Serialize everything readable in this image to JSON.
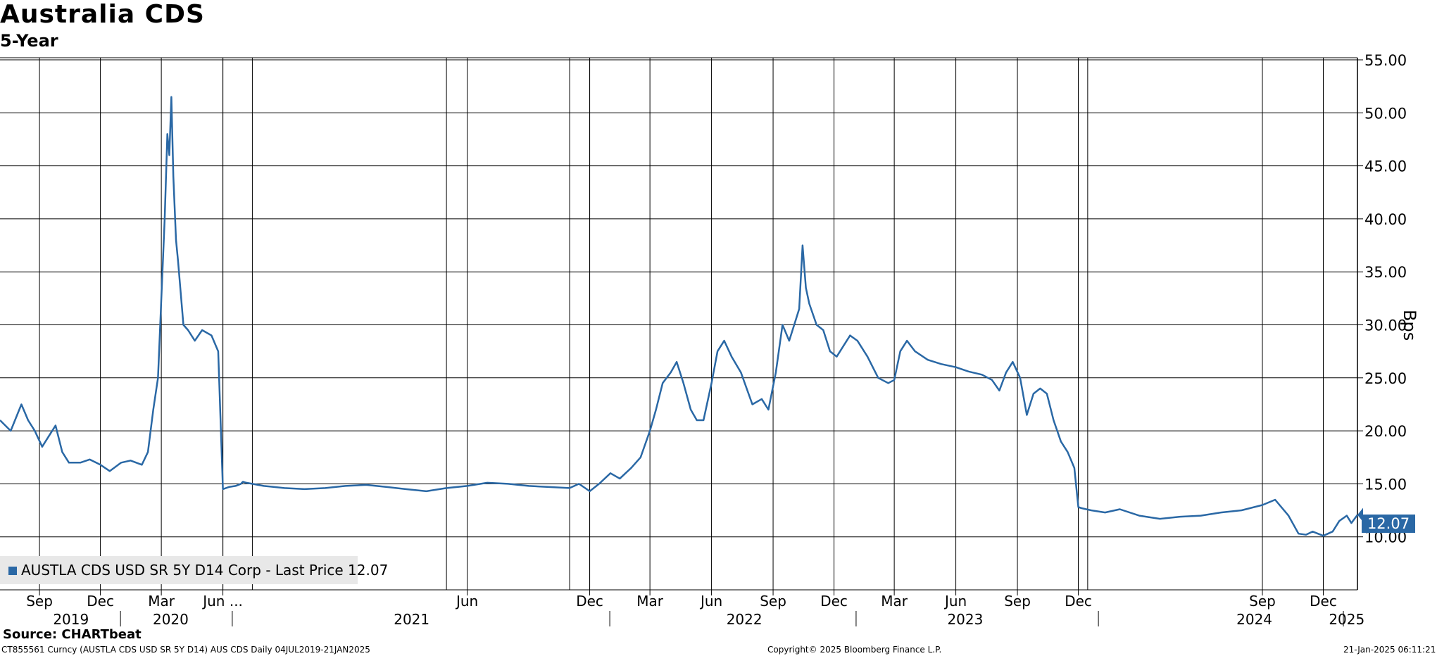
{
  "chart_data": {
    "type": "line",
    "title": "Australia CDS",
    "subtitle": "5-Year",
    "ylabel": "Bps",
    "ylim": [
      5,
      55
    ],
    "yticks": [
      "55.00",
      "50.00",
      "45.00",
      "40.00",
      "35.00",
      "30.00",
      "25.00",
      "20.00",
      "15.00",
      "10.00"
    ],
    "ytick_values": [
      55,
      50,
      45,
      40,
      35,
      30,
      25,
      20,
      15,
      10
    ],
    "xlim": [
      "2019-07-04",
      "2025-01-21"
    ],
    "month_ticks": [
      {
        "label": "Sep",
        "date": "2019-09-01"
      },
      {
        "label": "Dec",
        "date": "2019-12-01"
      },
      {
        "label": "Mar",
        "date": "2020-03-01"
      },
      {
        "label": "Jun ...",
        "date": "2020-06-01"
      },
      {
        "label": "Jun",
        "date": "2021-06-01"
      },
      {
        "label": "Dec",
        "date": "2021-12-01"
      },
      {
        "label": "Mar",
        "date": "2022-03-01"
      },
      {
        "label": "Jun",
        "date": "2022-06-01"
      },
      {
        "label": "Sep",
        "date": "2022-09-01"
      },
      {
        "label": "Dec",
        "date": "2022-12-01"
      },
      {
        "label": "Mar",
        "date": "2023-03-01"
      },
      {
        "label": "Jun",
        "date": "2023-06-01"
      },
      {
        "label": "Sep",
        "date": "2023-09-01"
      },
      {
        "label": "Dec",
        "date": "2023-12-01"
      },
      {
        "label": "Sep",
        "date": "2024-09-01"
      },
      {
        "label": "Dec",
        "date": "2024-12-01"
      }
    ],
    "extra_gridlines": [
      "2020-06-01",
      "2020-07-15",
      "2021-05-01",
      "2021-11-01",
      "2021-12-01",
      "2023-12-01",
      "2023-12-15",
      "2024-12-01"
    ],
    "year_ticks": [
      {
        "label": "2019",
        "date": "2019-10-18"
      },
      {
        "label": "2020",
        "date": "2020-03-15"
      },
      {
        "label": "2021",
        "date": "2021-03-10"
      },
      {
        "label": "2022",
        "date": "2022-07-20"
      },
      {
        "label": "2023",
        "date": "2023-06-15"
      },
      {
        "label": "2024",
        "date": "2024-08-20"
      },
      {
        "label": "2025",
        "date": "2025-01-05"
      }
    ],
    "year_separators": [
      "2019-12-31",
      "2020-06-15",
      "2021-12-31",
      "2023-01-03",
      "2023-12-31",
      "2024-12-31"
    ],
    "grid": true,
    "legend": "bottom-left",
    "series": [
      {
        "name": "AUSTLA CDS USD SR 5Y D14 Corp - Last Price 12.07",
        "color": "#2a68a5",
        "x": [
          "2019-07-04",
          "2019-07-20",
          "2019-08-05",
          "2019-08-15",
          "2019-08-25",
          "2019-09-05",
          "2019-09-15",
          "2019-09-25",
          "2019-10-05",
          "2019-10-15",
          "2019-11-01",
          "2019-11-15",
          "2019-12-01",
          "2019-12-15",
          "2020-01-01",
          "2020-01-15",
          "2020-02-01",
          "2020-02-10",
          "2020-02-18",
          "2020-02-25",
          "2020-03-02",
          "2020-03-06",
          "2020-03-10",
          "2020-03-13",
          "2020-03-16",
          "2020-03-19",
          "2020-03-23",
          "2020-03-26",
          "2020-03-30",
          "2020-04-03",
          "2020-04-10",
          "2020-04-20",
          "2020-05-01",
          "2020-05-15",
          "2020-05-25",
          "2020-06-01",
          "2020-06-10",
          "2020-06-20",
          "2020-06-28",
          "2020-07-01",
          "2020-07-06",
          "2020-07-15",
          "2020-08-01",
          "2020-09-01",
          "2020-10-01",
          "2020-11-01",
          "2020-12-01",
          "2021-01-01",
          "2021-02-01",
          "2021-03-01",
          "2021-04-01",
          "2021-05-01",
          "2021-06-01",
          "2021-07-01",
          "2021-08-01",
          "2021-09-01",
          "2021-10-01",
          "2021-11-01",
          "2021-11-15",
          "2021-12-01",
          "2021-12-15",
          "2022-01-01",
          "2022-01-15",
          "2022-02-01",
          "2022-02-15",
          "2022-03-01",
          "2022-03-10",
          "2022-03-20",
          "2022-04-01",
          "2022-04-10",
          "2022-04-20",
          "2022-05-01",
          "2022-05-10",
          "2022-05-20",
          "2022-06-01",
          "2022-06-10",
          "2022-06-20",
          "2022-07-01",
          "2022-07-15",
          "2022-08-01",
          "2022-08-15",
          "2022-08-25",
          "2022-09-05",
          "2022-09-15",
          "2022-09-25",
          "2022-10-05",
          "2022-10-10",
          "2022-10-15",
          "2022-10-20",
          "2022-10-25",
          "2022-11-05",
          "2022-11-15",
          "2022-11-25",
          "2022-12-05",
          "2022-12-15",
          "2022-12-25",
          "2023-01-05",
          "2023-01-20",
          "2023-02-05",
          "2023-02-20",
          "2023-03-01",
          "2023-03-10",
          "2023-03-20",
          "2023-04-01",
          "2023-04-20",
          "2023-05-10",
          "2023-06-01",
          "2023-06-20",
          "2023-07-10",
          "2023-07-25",
          "2023-08-05",
          "2023-08-15",
          "2023-08-25",
          "2023-09-05",
          "2023-09-15",
          "2023-09-25",
          "2023-10-05",
          "2023-10-15",
          "2023-10-25",
          "2023-11-05",
          "2023-11-15",
          "2023-11-25",
          "2023-12-01",
          "2023-12-06",
          "2023-12-20",
          "2024-01-10",
          "2024-02-01",
          "2024-03-01",
          "2024-04-01",
          "2024-05-01",
          "2024-06-01",
          "2024-07-01",
          "2024-08-01",
          "2024-09-01",
          "2024-09-20",
          "2024-10-10",
          "2024-10-25",
          "2024-11-05",
          "2024-11-15",
          "2024-12-01",
          "2024-12-15",
          "2024-12-25",
          "2025-01-05",
          "2025-01-12",
          "2025-01-21"
        ],
        "values": [
          21.0,
          20.0,
          22.5,
          21.0,
          20.0,
          18.5,
          19.5,
          20.5,
          18.0,
          17.0,
          17.0,
          17.3,
          16.8,
          16.2,
          17.0,
          17.2,
          16.8,
          18.0,
          22.0,
          25.0,
          34.0,
          40.0,
          48.0,
          46.0,
          51.5,
          44.0,
          38.0,
          36.0,
          33.0,
          30.0,
          29.5,
          28.5,
          29.5,
          29.0,
          27.5,
          14.5,
          14.7,
          14.8,
          15.0,
          15.2,
          15.1,
          15.0,
          14.8,
          14.6,
          14.5,
          14.6,
          14.8,
          14.9,
          14.7,
          14.5,
          14.3,
          14.6,
          14.8,
          15.1,
          15.0,
          14.8,
          14.7,
          14.6,
          15.0,
          14.3,
          15.0,
          16.0,
          15.5,
          16.5,
          17.5,
          20.0,
          22.0,
          24.5,
          25.5,
          26.5,
          24.5,
          22.0,
          21.0,
          21.0,
          24.5,
          27.5,
          28.5,
          27.0,
          25.5,
          22.5,
          23.0,
          22.0,
          25.5,
          30.0,
          28.5,
          30.5,
          31.5,
          37.5,
          33.5,
          32.0,
          30.0,
          29.5,
          27.5,
          27.0,
          28.0,
          29.0,
          28.5,
          27.0,
          25.0,
          24.5,
          24.8,
          27.5,
          28.5,
          27.5,
          26.7,
          26.3,
          26.0,
          25.6,
          25.3,
          24.8,
          23.8,
          25.5,
          26.5,
          25.0,
          21.5,
          23.5,
          24.0,
          23.5,
          21.0,
          19.0,
          18.0,
          16.5,
          12.8,
          12.7,
          12.5,
          12.3,
          12.6,
          12.0,
          11.7,
          11.9,
          12.0,
          12.3,
          12.5,
          13.0,
          13.5,
          12.0,
          10.3,
          10.2,
          10.5,
          10.1,
          10.5,
          11.5,
          12.0,
          11.3,
          12.07
        ]
      }
    ],
    "last_value": "12.07"
  },
  "header": {
    "title": "Australia CDS",
    "subtitle": "5-Year"
  },
  "footer": {
    "source": "Source: CHARTbeat",
    "left": "CT855561 Curncy (AUSTLA CDS USD SR 5Y D14) AUS CDS  Daily 04JUL2019-21JAN2025",
    "center": "Copyright© 2025 Bloomberg Finance L.P.",
    "right": "21-Jan-2025 06:11:21"
  }
}
